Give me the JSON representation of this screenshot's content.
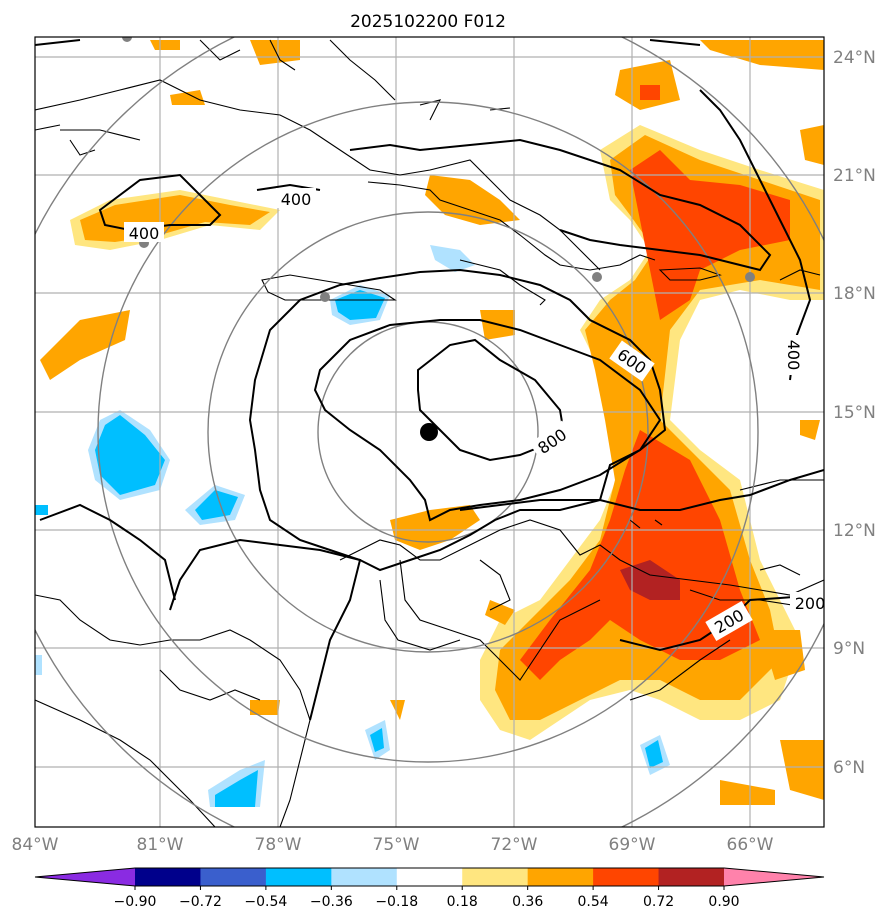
{
  "title": "2025102200 F012",
  "lon_labels": [
    "84°W",
    "81°W",
    "78°W",
    "75°W",
    "72°W",
    "69°W",
    "66°W"
  ],
  "lat_labels": [
    "24°N",
    "21°N",
    "18°N",
    "15°N",
    "12°N",
    "9°N",
    "6°N"
  ],
  "contour_labels": [
    "400",
    "400",
    "400",
    "600",
    "800",
    "200",
    "200"
  ],
  "colorbar": {
    "ticks": [
      "−0.90",
      "−0.72",
      "−0.54",
      "−0.36",
      "−0.18",
      "0.18",
      "0.36",
      "0.54",
      "0.72",
      "0.90"
    ],
    "colors": [
      "#8a2be2",
      "#00008b",
      "#3a5fcd",
      "#00bfff",
      "#b0e2ff",
      "#ffffff",
      "#ffe680",
      "#ffa500",
      "#ff4500",
      "#b22222",
      "#ff82ab"
    ]
  },
  "storm_center": {
    "lon": "74°W",
    "lat": "14.5°N"
  },
  "colors": {
    "grid": "#b0b0b0",
    "rings": "#808080",
    "contour": "#000000"
  }
}
